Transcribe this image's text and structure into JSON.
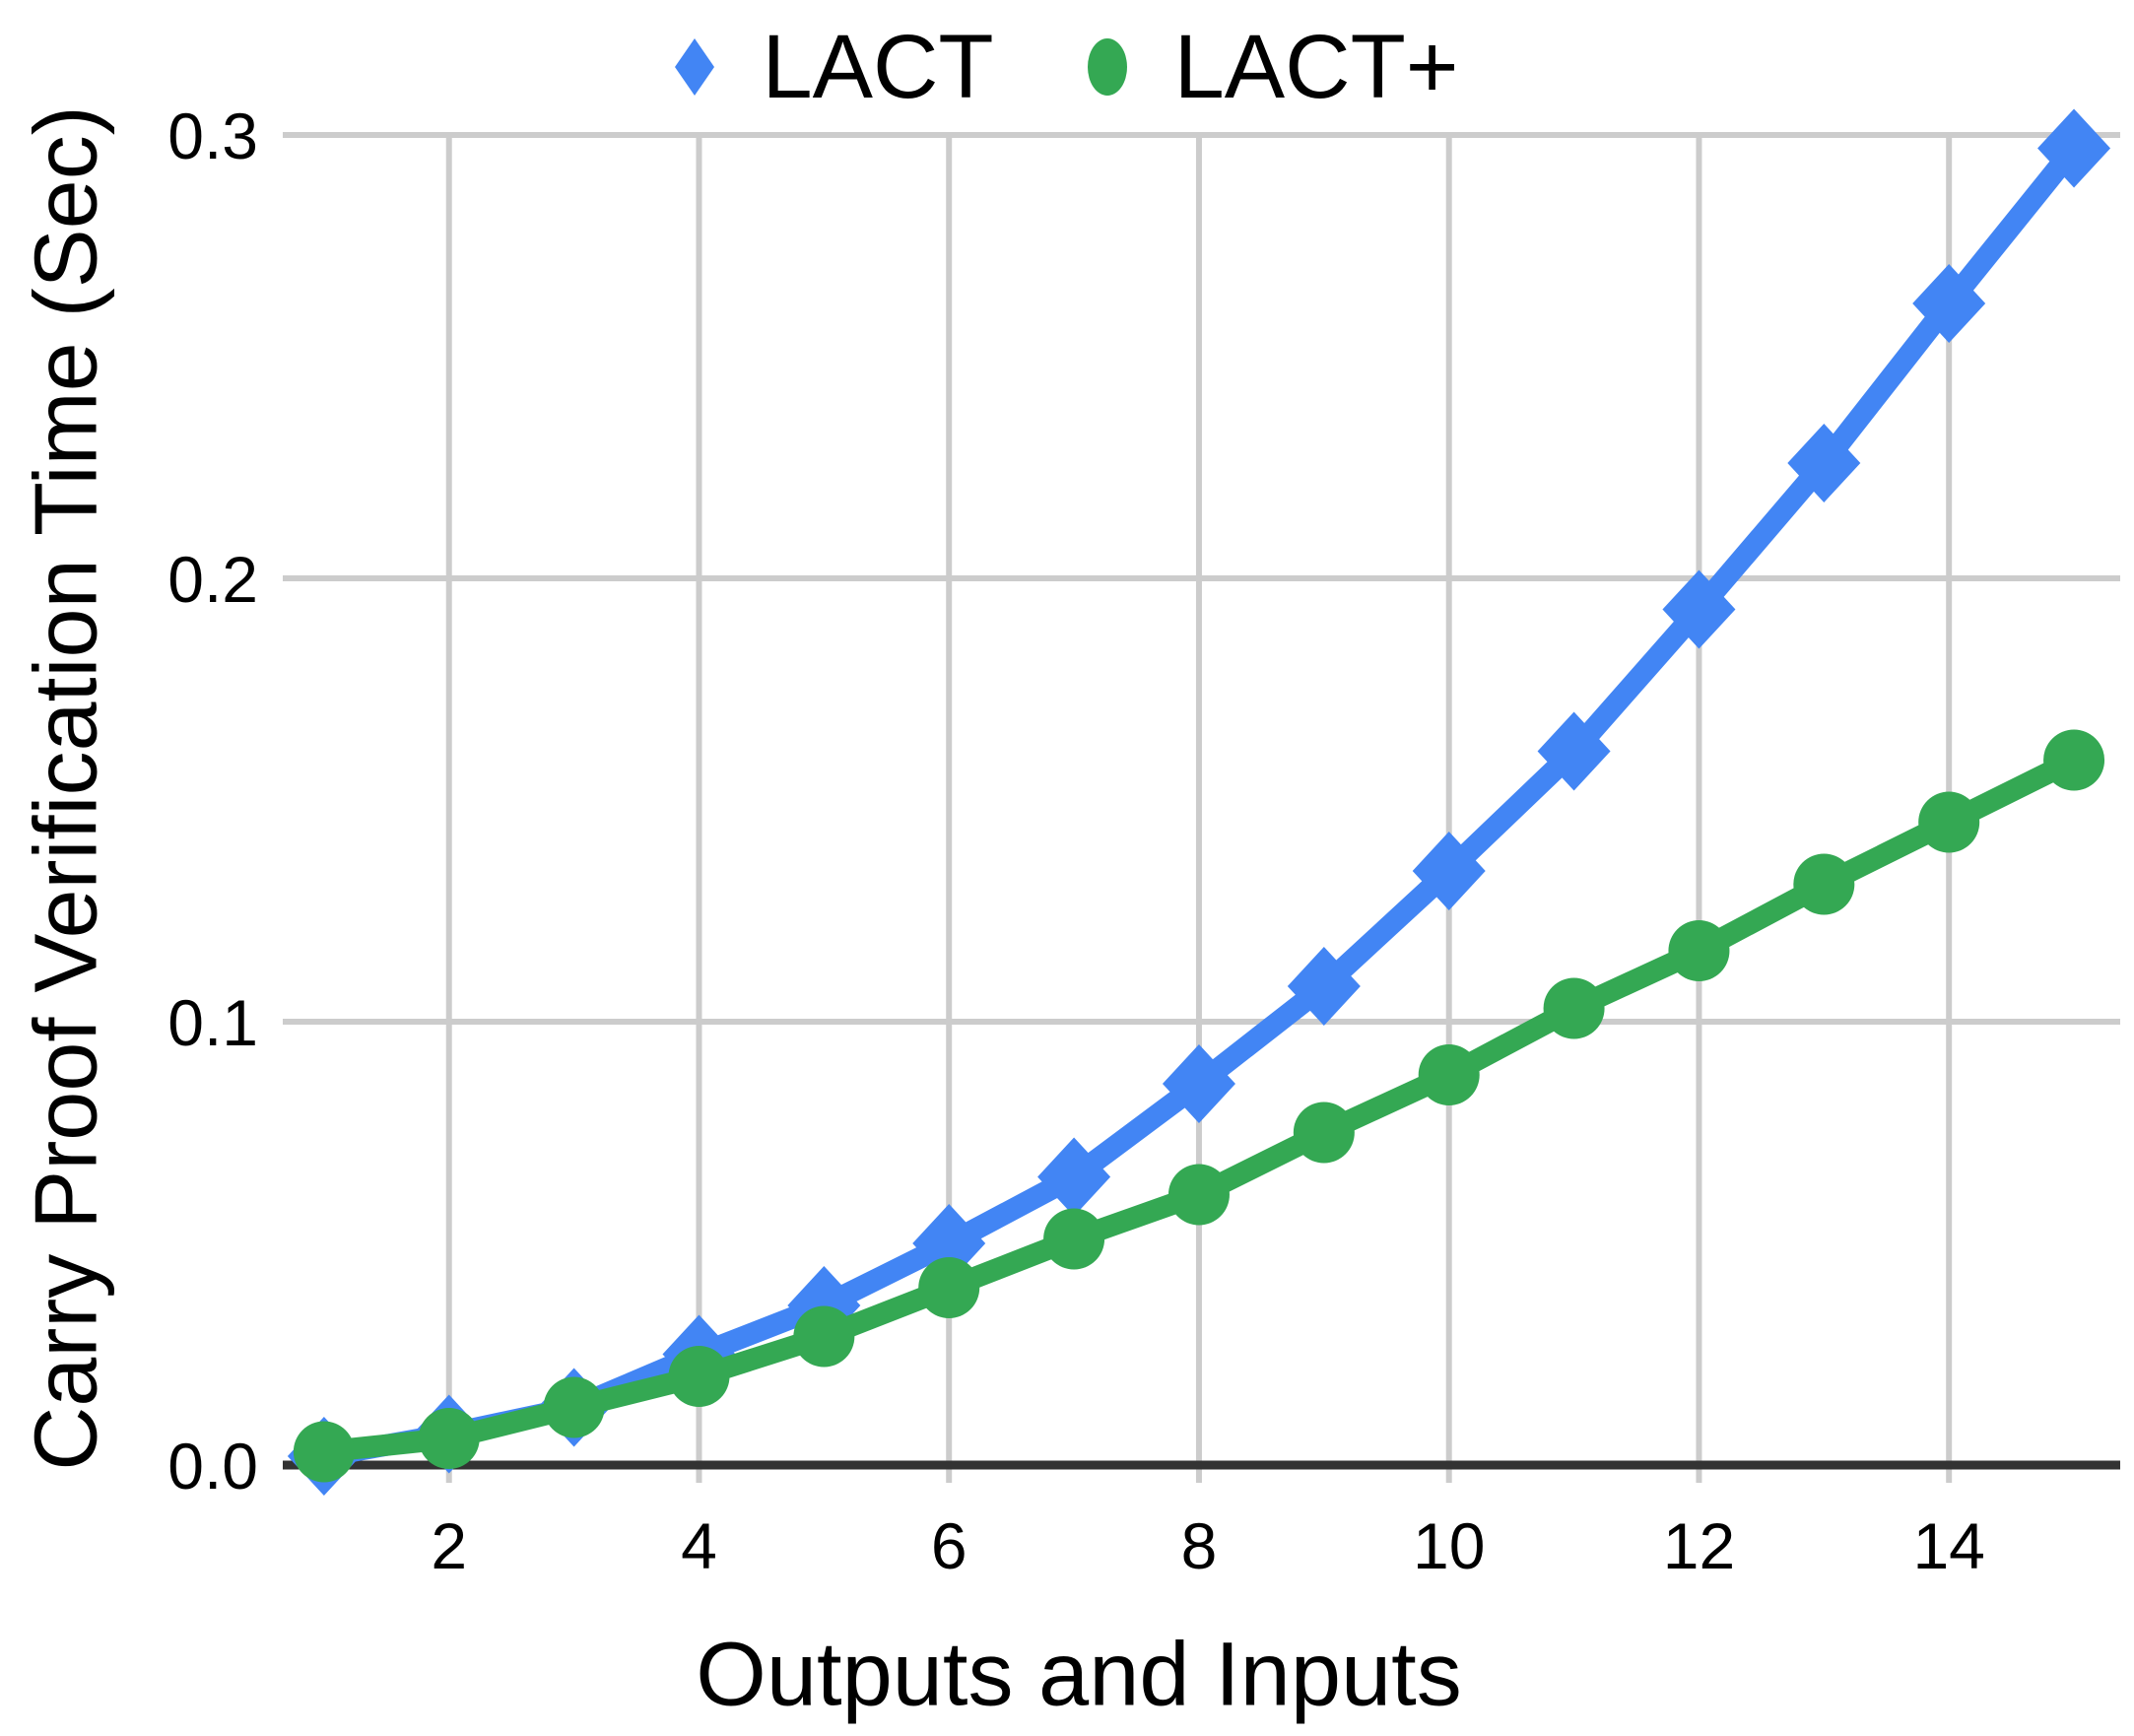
{
  "chart_data": {
    "type": "line",
    "title": "",
    "xlabel": "Outputs and Inputs",
    "ylabel": "Carry Proof Verification Time (Sec)",
    "x": [
      1,
      2,
      3,
      4,
      5,
      6,
      7,
      8,
      9,
      10,
      11,
      12,
      13,
      14,
      15
    ],
    "series": [
      {
        "name": "LACT",
        "marker": "diamond",
        "color": "#4285f4",
        "values": [
          0.002,
          0.007,
          0.013,
          0.025,
          0.036,
          0.05,
          0.065,
          0.086,
          0.108,
          0.134,
          0.161,
          0.193,
          0.226,
          0.262,
          0.297
        ]
      },
      {
        "name": "LACT+",
        "marker": "circle",
        "color": "#34a853",
        "values": [
          0.003,
          0.006,
          0.013,
          0.02,
          0.029,
          0.04,
          0.051,
          0.061,
          0.075,
          0.088,
          0.103,
          0.116,
          0.131,
          0.145,
          0.159
        ]
      }
    ],
    "xticks": [
      2,
      4,
      6,
      8,
      10,
      12,
      14
    ],
    "yticks": [
      0,
      0.1,
      0.2,
      0.3
    ],
    "ytick_labels": [
      "0.0",
      "0.1",
      "0.2",
      "0.3"
    ],
    "xlim": [
      0.67,
      15.37
    ],
    "ylim": [
      0,
      0.3
    ],
    "grid": true,
    "legend_position": "top-center",
    "colors": {
      "grid": "#cccccc",
      "axis": "#333333",
      "text": "#000000"
    }
  }
}
